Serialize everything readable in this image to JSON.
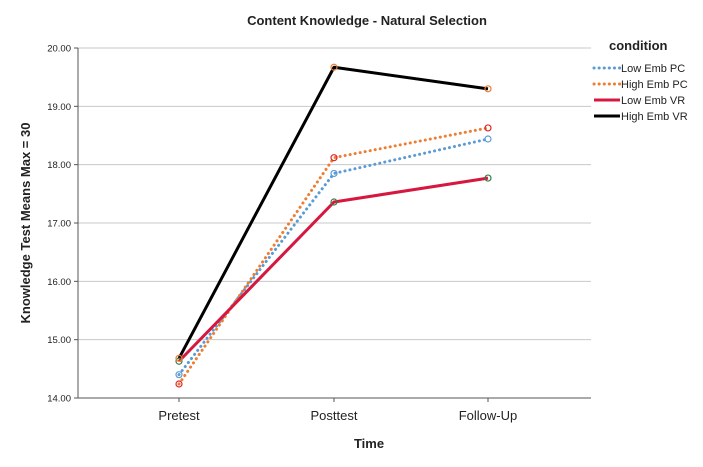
{
  "chart_data": {
    "type": "line",
    "title": "Content Knowledge - Natural Selection",
    "xlabel": "Time",
    "ylabel": "Knowledge Test Means   Max = 30",
    "categories": [
      "Pretest",
      "Posttest",
      "Follow-Up"
    ],
    "ylim": [
      14.0,
      20.0
    ],
    "yticks": [
      "14.00",
      "15.00",
      "16.00",
      "17.00",
      "18.00",
      "19.00",
      "20.00"
    ],
    "grid": "horizontal",
    "legend": {
      "title": "condition",
      "placement": "right"
    },
    "series": [
      {
        "name": "Low Emb PC",
        "values": [
          14.4,
          17.85,
          18.44
        ],
        "color": "#5b9bd5",
        "style": "dotted",
        "marker_color": "#5b9bd5"
      },
      {
        "name": "High Emb PC",
        "values": [
          14.24,
          18.12,
          18.63
        ],
        "color": "#ed7d31",
        "style": "dotted",
        "marker_color": "#e0252b"
      },
      {
        "name": "Low Emb VR",
        "values": [
          14.63,
          17.36,
          17.77
        ],
        "color": "#d6173f",
        "style": "solid",
        "marker_color": "#3a7d44"
      },
      {
        "name": "High Emb VR",
        "values": [
          14.68,
          19.67,
          19.3
        ],
        "color": "#000000",
        "style": "solid",
        "marker_color": "#ed7d31"
      }
    ]
  }
}
